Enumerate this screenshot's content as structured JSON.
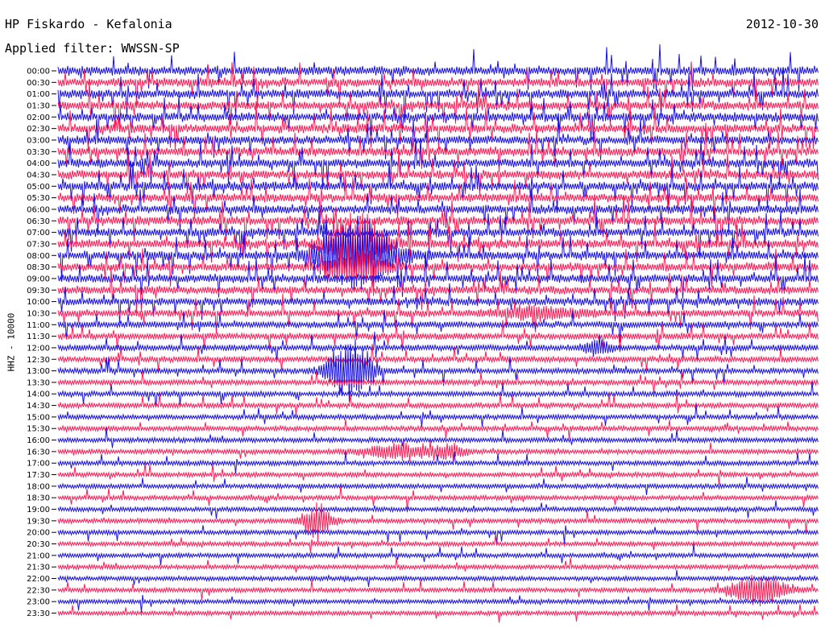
{
  "header": {
    "station": "HP Fiskardo - Kefalonia",
    "date": "2012-10-30",
    "filter": "Applied filter: WWSSN-SP"
  },
  "chart_data": {
    "type": "line",
    "subtype": "helicorder",
    "title": "HP Fiskardo - Kefalonia",
    "date": "2012-10-30",
    "filter": "Applied filter: WWSSN-SP",
    "ylabel": "HHZ - 10000",
    "xlabel": "",
    "rows": [
      "00:00",
      "00:30",
      "01:00",
      "01:30",
      "02:00",
      "02:30",
      "03:00",
      "03:30",
      "04:00",
      "04:30",
      "05:00",
      "05:30",
      "06:00",
      "06:30",
      "07:00",
      "07:30",
      "08:00",
      "08:30",
      "09:00",
      "09:30",
      "10:00",
      "10:30",
      "11:00",
      "11:30",
      "12:00",
      "12:30",
      "13:00",
      "13:30",
      "14:00",
      "14:30",
      "15:00",
      "15:30",
      "16:00",
      "16:30",
      "17:00",
      "17:30",
      "18:00",
      "18:30",
      "19:00",
      "19:30",
      "20:00",
      "20:30",
      "21:00",
      "21:30",
      "22:00",
      "22:30",
      "23:00",
      "23:30"
    ],
    "row_duration_minutes": 30,
    "trace_colors": [
      "#1a12e0",
      "#ff1a55"
    ],
    "noise_level": [
      1.0,
      1.0,
      1.0,
      1.0,
      1.0,
      1.0,
      1.0,
      1.0,
      1.0,
      1.0,
      1.0,
      1.0,
      1.0,
      1.0,
      1.0,
      1.0,
      1.0,
      0.95,
      0.9,
      0.85,
      0.8,
      0.7,
      0.6,
      0.55,
      0.5,
      0.45,
      0.4,
      0.38,
      0.35,
      0.33,
      0.3,
      0.3,
      0.3,
      0.28,
      0.28,
      0.27,
      0.26,
      0.25,
      0.25,
      0.25,
      0.24,
      0.24,
      0.23,
      0.23,
      0.22,
      0.22,
      0.22,
      0.22
    ],
    "events": [
      {
        "row": "07:30",
        "minute": 11.8,
        "amplitude": 4.0,
        "duration_minutes": 1.5
      },
      {
        "row": "08:00",
        "minute": 11.8,
        "amplitude": 5.5,
        "duration_minutes": 2.0
      },
      {
        "row": "08:30",
        "minute": 11.8,
        "amplitude": 2.0,
        "duration_minutes": 1.5
      },
      {
        "row": "10:30",
        "minute": 19.0,
        "amplitude": 0.8,
        "duration_minutes": 2.5
      },
      {
        "row": "12:00",
        "minute": 21.3,
        "amplitude": 1.0,
        "duration_minutes": 0.8
      },
      {
        "row": "13:00",
        "minute": 11.5,
        "amplitude": 4.5,
        "duration_minutes": 1.2
      },
      {
        "row": "16:30",
        "minute": 13.5,
        "amplitude": 1.0,
        "duration_minutes": 2.0
      },
      {
        "row": "16:30",
        "minute": 15.5,
        "amplitude": 0.9,
        "duration_minutes": 0.8
      },
      {
        "row": "19:30",
        "minute": 10.2,
        "amplitude": 2.5,
        "duration_minutes": 0.8
      },
      {
        "row": "22:30",
        "minute": 27.6,
        "amplitude": 2.2,
        "duration_minutes": 1.5
      }
    ]
  }
}
